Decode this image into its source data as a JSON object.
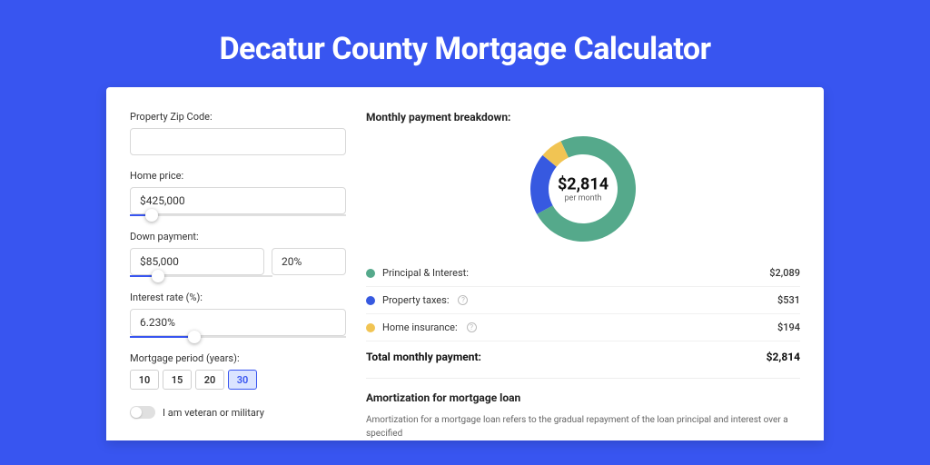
{
  "page": {
    "title": "Decatur County Mortgage Calculator"
  },
  "form": {
    "zip": {
      "label": "Property Zip Code:",
      "value": ""
    },
    "home_price": {
      "label": "Home price:",
      "value": "$425,000",
      "slider_pct": 10
    },
    "down_payment": {
      "label": "Down payment:",
      "value": "$85,000",
      "pct_value": "20%",
      "slider_pct": 20
    },
    "interest": {
      "label": "Interest rate (%):",
      "value": "6.230%",
      "slider_pct": 30
    },
    "period": {
      "label": "Mortgage period (years):",
      "options": [
        "10",
        "15",
        "20",
        "30"
      ],
      "selected": "30"
    },
    "veteran": {
      "label": "I am veteran or military",
      "checked": false
    }
  },
  "breakdown": {
    "title": "Monthly payment breakdown:",
    "center_amount": "$2,814",
    "center_sub": "per month",
    "donut": {
      "slices": [
        {
          "color": "#55a98b",
          "pct": 74
        },
        {
          "color": "#3759e0",
          "pct": 19
        },
        {
          "color": "#f1c453",
          "pct": 7
        }
      ],
      "size": 120,
      "thickness": 20
    },
    "items": [
      {
        "color": "#55a98b",
        "label": "Principal & Interest:",
        "value": "$2,089",
        "info": false
      },
      {
        "color": "#3759e0",
        "label": "Property taxes:",
        "value": "$531",
        "info": true
      },
      {
        "color": "#f1c453",
        "label": "Home insurance:",
        "value": "$194",
        "info": true
      }
    ],
    "total": {
      "label": "Total monthly payment:",
      "value": "$2,814"
    }
  },
  "amort": {
    "title": "Amortization for mortgage loan",
    "text": "Amortization for a mortgage loan refers to the gradual repayment of the loan principal and interest over a specified"
  },
  "colors": {
    "accent": "#3855f0"
  }
}
